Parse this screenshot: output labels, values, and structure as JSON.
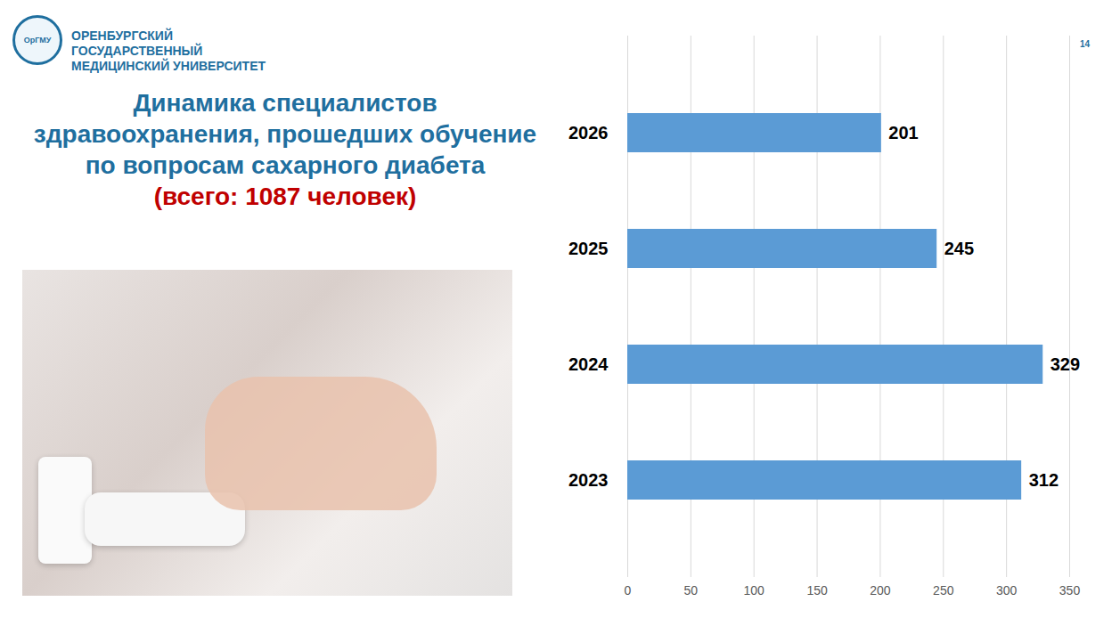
{
  "page": {
    "logo_text": "ОрГМУ",
    "university": [
      "ОРЕНБУРГСКИЙ ГОСУДАРСТВЕННЫЙ",
      "МЕДИЦИНСКИЙ УНИВЕРСИТЕТ"
    ],
    "page_number": "14"
  },
  "chart_data": {
    "type": "bar",
    "orientation": "horizontal",
    "title": "Динамика специалистов здравоохранения, прошедших обучение по вопросам сахарного диабета",
    "subtitle": "(всего: 1087 человек)",
    "categories": [
      "2026",
      "2025",
      "2024",
      "2023"
    ],
    "values": [
      201,
      245,
      329,
      312
    ],
    "color": "#5b9bd5",
    "xlim": [
      0,
      350
    ],
    "xticks": [
      0,
      50,
      100,
      150,
      200,
      250,
      300,
      350
    ],
    "grid": true,
    "data_labels": true
  }
}
